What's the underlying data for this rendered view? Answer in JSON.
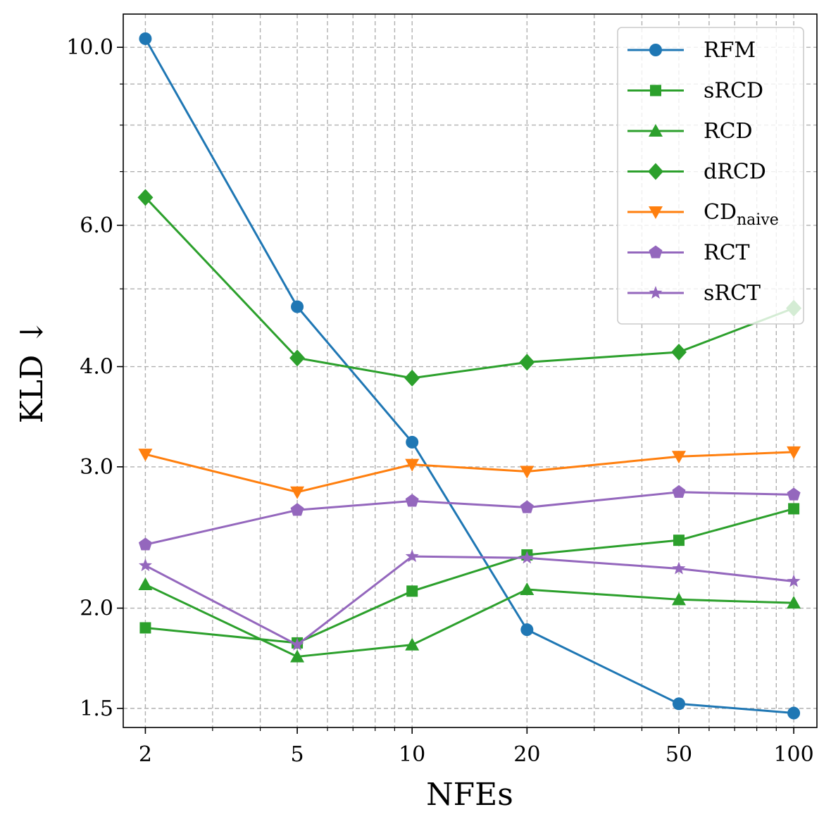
{
  "chart_data": {
    "type": "line",
    "title": "",
    "xlabel": "NFEs",
    "ylabel": "KLD ↓",
    "x_scale": "log",
    "y_scale": "log",
    "x": [
      2,
      5,
      10,
      20,
      50,
      100
    ],
    "x_tick_labels": [
      "2",
      "5",
      "10",
      "20",
      "50",
      "100"
    ],
    "y_ticks": [
      1.5,
      2.0,
      3.0,
      4.0,
      6.0,
      10.0
    ],
    "y_tick_labels": [
      "1.5",
      "2.0",
      "3.0",
      "4.0",
      "6.0",
      "10.0"
    ],
    "xlim": [
      1.75,
      115
    ],
    "ylim": [
      1.42,
      11.0
    ],
    "grid": true,
    "legend_position": "top-right",
    "series": [
      {
        "name": "RFM",
        "label_main": "RFM",
        "label_sub": "",
        "color": "#1f77b4",
        "marker": "circle",
        "values": [
          10.25,
          4.75,
          3.22,
          1.88,
          1.52,
          1.48
        ]
      },
      {
        "name": "sRCD",
        "label_main": "sRCD",
        "label_sub": "",
        "color": "#2ca02c",
        "marker": "square",
        "values": [
          1.89,
          1.81,
          2.1,
          2.33,
          2.43,
          2.66
        ]
      },
      {
        "name": "RCD",
        "label_main": "RCD",
        "label_sub": "",
        "color": "#2ca02c",
        "marker": "triangle-up",
        "values": [
          2.14,
          1.74,
          1.8,
          2.11,
          2.05,
          2.03
        ]
      },
      {
        "name": "dRCD",
        "label_main": "dRCD",
        "label_sub": "",
        "color": "#2ca02c",
        "marker": "diamond",
        "values": [
          6.5,
          4.1,
          3.87,
          4.05,
          4.17,
          4.73
        ]
      },
      {
        "name": "CDnaive",
        "label_main": "CD",
        "label_sub": "naive",
        "color": "#ff7f0e",
        "marker": "triangle-down",
        "values": [
          3.11,
          2.79,
          3.02,
          2.96,
          3.09,
          3.13
        ]
      },
      {
        "name": "RCT",
        "label_main": "RCT",
        "label_sub": "",
        "color": "#9467bd",
        "marker": "pentagon",
        "values": [
          2.4,
          2.65,
          2.72,
          2.67,
          2.79,
          2.77
        ]
      },
      {
        "name": "sRCT",
        "label_main": "sRCT",
        "label_sub": "",
        "color": "#9467bd",
        "marker": "star",
        "values": [
          2.26,
          1.8,
          2.32,
          2.31,
          2.24,
          2.16
        ]
      }
    ]
  }
}
